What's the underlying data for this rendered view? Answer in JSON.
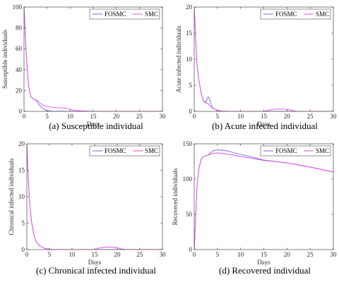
{
  "colors": {
    "FOSMC": "#6a6ae6",
    "SMC": "#e14be6",
    "axis": "#262626"
  },
  "chart_data": [
    {
      "type": "line",
      "caption": "(a) Susceptible individual",
      "xlabel": "Days",
      "ylabel": "Susceptible individuals",
      "xlim": [
        0,
        30
      ],
      "ylim": [
        0,
        100
      ],
      "xticks": [
        0,
        5,
        10,
        15,
        20,
        25,
        30
      ],
      "yticks": [
        0,
        20,
        40,
        60,
        80,
        100
      ],
      "legend": "top-right",
      "series": [
        {
          "name": "FOSMC",
          "x": [
            0,
            0.3,
            0.7,
            1,
            1.5,
            2,
            2.5,
            3,
            3.5,
            4,
            4.5,
            5,
            6,
            8,
            10,
            15,
            20,
            25,
            30
          ],
          "y": [
            100,
            70,
            40,
            24,
            14,
            12,
            11,
            8,
            5,
            3,
            1.5,
            0.5,
            0.2,
            0.1,
            0,
            0,
            0,
            0,
            0
          ]
        },
        {
          "name": "SMC",
          "x": [
            0,
            0.3,
            0.7,
            1,
            1.5,
            2,
            2.5,
            3,
            3.5,
            4,
            5,
            6,
            7,
            8,
            9,
            10,
            11,
            12,
            15,
            20,
            25,
            30
          ],
          "y": [
            100,
            70,
            40,
            24,
            14,
            12,
            11,
            10,
            8,
            6,
            5,
            4,
            3.5,
            3.5,
            3,
            2,
            1,
            0.5,
            0,
            0,
            0,
            0
          ]
        }
      ]
    },
    {
      "type": "line",
      "caption": "(b) Acute infected individual",
      "xlabel": "Days",
      "ylabel": "Acute infected individuals",
      "xlim": [
        0,
        30
      ],
      "ylim": [
        0,
        20
      ],
      "xticks": [
        0,
        5,
        10,
        15,
        20,
        25,
        30
      ],
      "yticks": [
        0,
        5,
        10,
        15,
        20
      ],
      "legend": "top-right",
      "series": [
        {
          "name": "FOSMC",
          "x": [
            0,
            0.3,
            0.6,
            1,
            1.5,
            2,
            2.5,
            3,
            3.3,
            3.7,
            4,
            5,
            6,
            8,
            10,
            15,
            30
          ],
          "y": [
            20,
            14,
            9,
            6,
            3.5,
            2,
            1.8,
            2.8,
            2.4,
            1.2,
            0.6,
            0.15,
            0,
            0,
            0,
            0,
            0
          ]
        },
        {
          "name": "SMC",
          "x": [
            0,
            0.3,
            0.6,
            1,
            1.5,
            2,
            2.5,
            3,
            3.5,
            4,
            5,
            6,
            8,
            10,
            15,
            16,
            17,
            18,
            19,
            20,
            21,
            22,
            25,
            30
          ],
          "y": [
            20,
            14,
            9,
            6,
            3.5,
            2,
            1.6,
            1.5,
            1.0,
            0.6,
            0.2,
            0.05,
            0,
            0,
            0,
            0.2,
            0.4,
            0.45,
            0.45,
            0.4,
            0.2,
            0,
            0,
            0
          ]
        }
      ]
    },
    {
      "type": "line",
      "caption": "(c) Chronical infected individual",
      "xlabel": "Days",
      "ylabel": "Chronical infected individuals",
      "xlim": [
        0,
        30
      ],
      "ylim": [
        0,
        20
      ],
      "xticks": [
        0,
        5,
        10,
        15,
        20,
        25,
        30
      ],
      "yticks": [
        0,
        5,
        10,
        15,
        20
      ],
      "legend": "top-right",
      "series": [
        {
          "name": "FOSMC",
          "x": [
            0,
            0.3,
            0.6,
            1,
            1.5,
            2,
            2.5,
            3,
            4,
            5,
            6,
            10,
            15,
            20,
            25,
            30
          ],
          "y": [
            20,
            14,
            9,
            5.5,
            3,
            1.6,
            1.0,
            0.6,
            0.2,
            0.05,
            0,
            0,
            0,
            0,
            0,
            0
          ]
        },
        {
          "name": "SMC",
          "x": [
            0,
            0.3,
            0.6,
            1,
            1.5,
            2,
            2.5,
            3,
            4,
            5,
            6,
            10,
            15,
            16,
            17,
            19,
            20,
            21,
            22,
            25,
            30
          ],
          "y": [
            20,
            14,
            9,
            5.5,
            3,
            1.6,
            1.0,
            0.6,
            0.2,
            0.05,
            0,
            0,
            0,
            0.3,
            0.45,
            0.45,
            0.35,
            0.1,
            0,
            0,
            0
          ]
        }
      ]
    },
    {
      "type": "line",
      "caption": "(d) Recovered individual",
      "xlabel": "Days",
      "ylabel": "Recovered individuals",
      "xlim": [
        0,
        30
      ],
      "ylim": [
        0,
        150
      ],
      "xticks": [
        0,
        5,
        10,
        15,
        20,
        25,
        30
      ],
      "yticks": [
        0,
        50,
        100,
        150
      ],
      "legend": "top-right",
      "series": [
        {
          "name": "FOSMC",
          "x": [
            0,
            0.3,
            0.6,
            1,
            1.5,
            2,
            3,
            4,
            5,
            6,
            7,
            8,
            10,
            12,
            15,
            20,
            25,
            30
          ],
          "y": [
            0,
            45,
            90,
            115,
            128,
            132,
            134,
            140,
            141.5,
            141,
            140,
            138.5,
            135,
            132,
            127,
            123,
            117,
            110
          ]
        },
        {
          "name": "SMC",
          "x": [
            0,
            0.3,
            0.6,
            1,
            1.5,
            2,
            3,
            4,
            5,
            6,
            7,
            8,
            10,
            12,
            15,
            20,
            25,
            30
          ],
          "y": [
            0,
            45,
            90,
            115,
            128,
            132,
            134,
            136.5,
            137,
            136.5,
            135.5,
            134.5,
            132,
            130,
            126.5,
            123,
            117,
            110
          ]
        }
      ]
    }
  ]
}
